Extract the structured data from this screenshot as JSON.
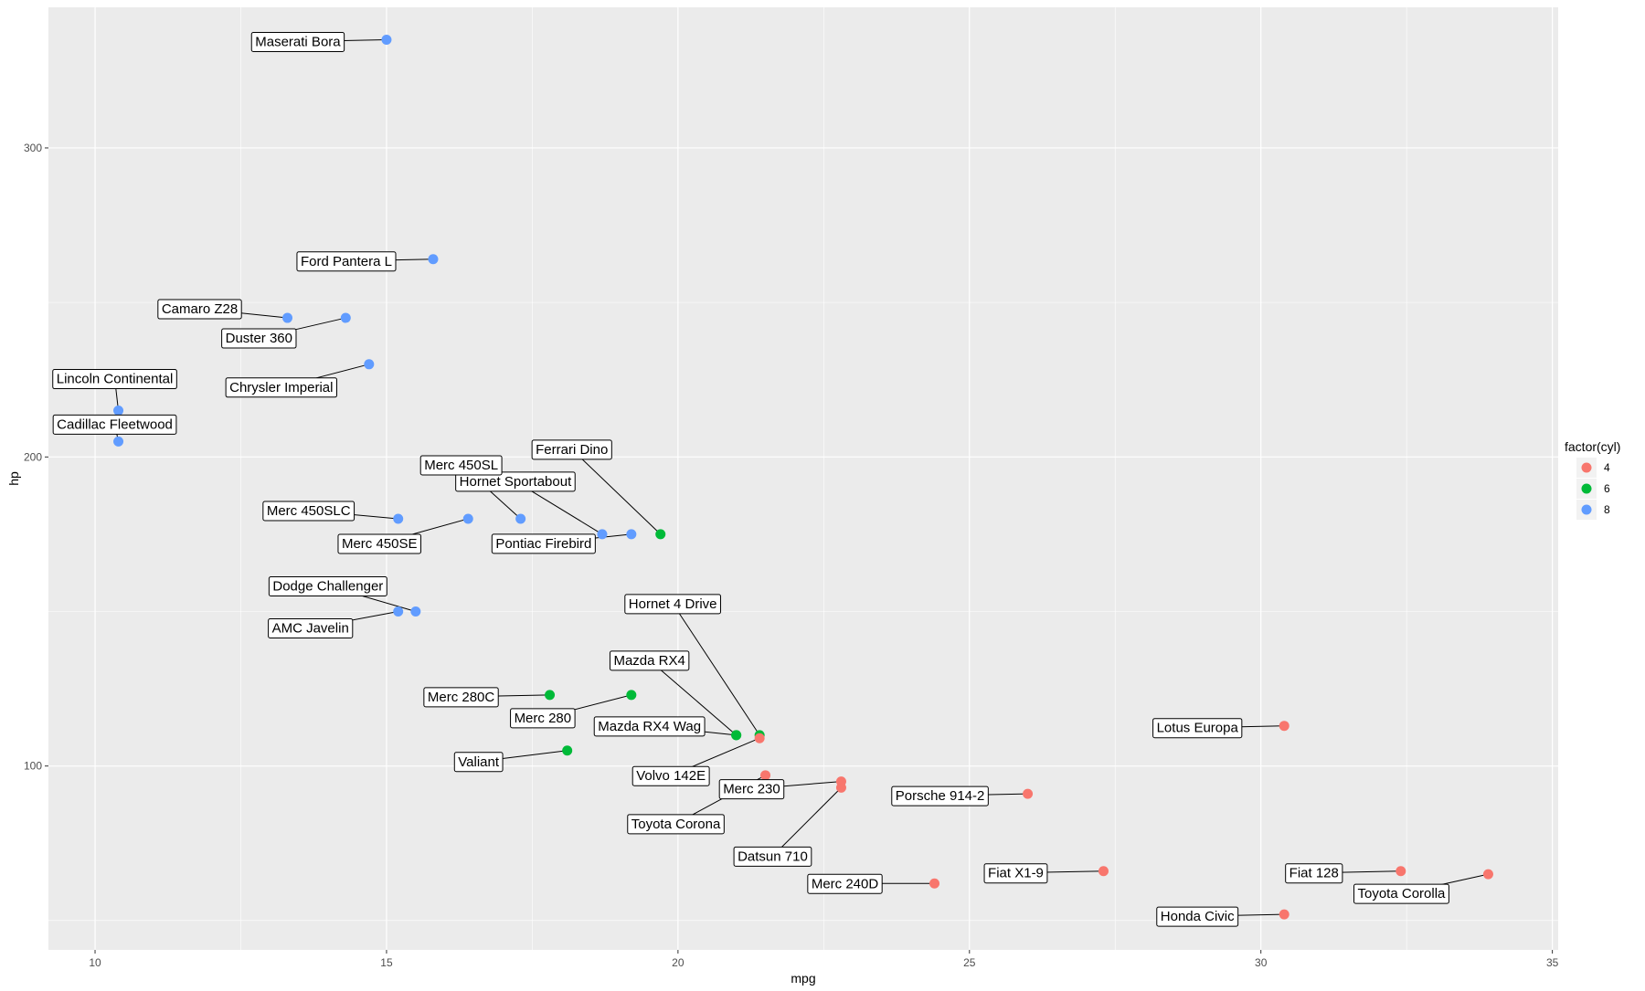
{
  "chart_data": {
    "type": "scatter",
    "xlabel": "mpg",
    "ylabel": "hp",
    "xlim": [
      9.2,
      35.1
    ],
    "ylim": [
      40.5,
      345.5
    ],
    "x_ticks": [
      10,
      15,
      20,
      25,
      30,
      35
    ],
    "y_ticks": [
      100,
      200,
      300
    ],
    "grid": true,
    "legend": {
      "title": "factor(cyl)",
      "position": "right",
      "entries": [
        {
          "label": "4",
          "color": "#F8766D"
        },
        {
          "label": "6",
          "color": "#00BA38"
        },
        {
          "label": "8",
          "color": "#619CFF"
        }
      ]
    },
    "points": [
      {
        "name": "Mazda RX4",
        "mpg": 21.0,
        "hp": 110,
        "cyl": "6"
      },
      {
        "name": "Mazda RX4 Wag",
        "mpg": 21.0,
        "hp": 110,
        "cyl": "6"
      },
      {
        "name": "Datsun 710",
        "mpg": 22.8,
        "hp": 93,
        "cyl": "4"
      },
      {
        "name": "Hornet 4 Drive",
        "mpg": 21.4,
        "hp": 110,
        "cyl": "6"
      },
      {
        "name": "Hornet Sportabout",
        "mpg": 18.7,
        "hp": 175,
        "cyl": "8"
      },
      {
        "name": "Valiant",
        "mpg": 18.1,
        "hp": 105,
        "cyl": "6"
      },
      {
        "name": "Duster 360",
        "mpg": 14.3,
        "hp": 245,
        "cyl": "8"
      },
      {
        "name": "Merc 240D",
        "mpg": 24.4,
        "hp": 62,
        "cyl": "4"
      },
      {
        "name": "Merc 230",
        "mpg": 22.8,
        "hp": 95,
        "cyl": "4"
      },
      {
        "name": "Merc 280",
        "mpg": 19.2,
        "hp": 123,
        "cyl": "6"
      },
      {
        "name": "Merc 280C",
        "mpg": 17.8,
        "hp": 123,
        "cyl": "6"
      },
      {
        "name": "Merc 450SE",
        "mpg": 16.4,
        "hp": 180,
        "cyl": "8"
      },
      {
        "name": "Merc 450SL",
        "mpg": 17.3,
        "hp": 180,
        "cyl": "8"
      },
      {
        "name": "Merc 450SLC",
        "mpg": 15.2,
        "hp": 180,
        "cyl": "8"
      },
      {
        "name": "Cadillac Fleetwood",
        "mpg": 10.4,
        "hp": 205,
        "cyl": "8"
      },
      {
        "name": "Lincoln Continental",
        "mpg": 10.4,
        "hp": 215,
        "cyl": "8"
      },
      {
        "name": "Chrysler Imperial",
        "mpg": 14.7,
        "hp": 230,
        "cyl": "8"
      },
      {
        "name": "Fiat 128",
        "mpg": 32.4,
        "hp": 66,
        "cyl": "4"
      },
      {
        "name": "Honda Civic",
        "mpg": 30.4,
        "hp": 52,
        "cyl": "4"
      },
      {
        "name": "Toyota Corolla",
        "mpg": 33.9,
        "hp": 65,
        "cyl": "4"
      },
      {
        "name": "Toyota Corona",
        "mpg": 21.5,
        "hp": 97,
        "cyl": "4"
      },
      {
        "name": "Dodge Challenger",
        "mpg": 15.5,
        "hp": 150,
        "cyl": "8"
      },
      {
        "name": "AMC Javelin",
        "mpg": 15.2,
        "hp": 150,
        "cyl": "8"
      },
      {
        "name": "Camaro Z28",
        "mpg": 13.3,
        "hp": 245,
        "cyl": "8"
      },
      {
        "name": "Pontiac Firebird",
        "mpg": 19.2,
        "hp": 175,
        "cyl": "8"
      },
      {
        "name": "Fiat X1-9",
        "mpg": 27.3,
        "hp": 66,
        "cyl": "4"
      },
      {
        "name": "Porsche 914-2",
        "mpg": 26.0,
        "hp": 91,
        "cyl": "4"
      },
      {
        "name": "Lotus Europa",
        "mpg": 30.4,
        "hp": 113,
        "cyl": "4"
      },
      {
        "name": "Ford Pantera L",
        "mpg": 15.8,
        "hp": 264,
        "cyl": "8"
      },
      {
        "name": "Ferrari Dino",
        "mpg": 19.7,
        "hp": 175,
        "cyl": "6"
      },
      {
        "name": "Maserati Bora",
        "mpg": 15.0,
        "hp": 335,
        "cyl": "8"
      },
      {
        "name": "Volvo 142E",
        "mpg": 21.4,
        "hp": 109,
        "cyl": "4"
      }
    ]
  }
}
